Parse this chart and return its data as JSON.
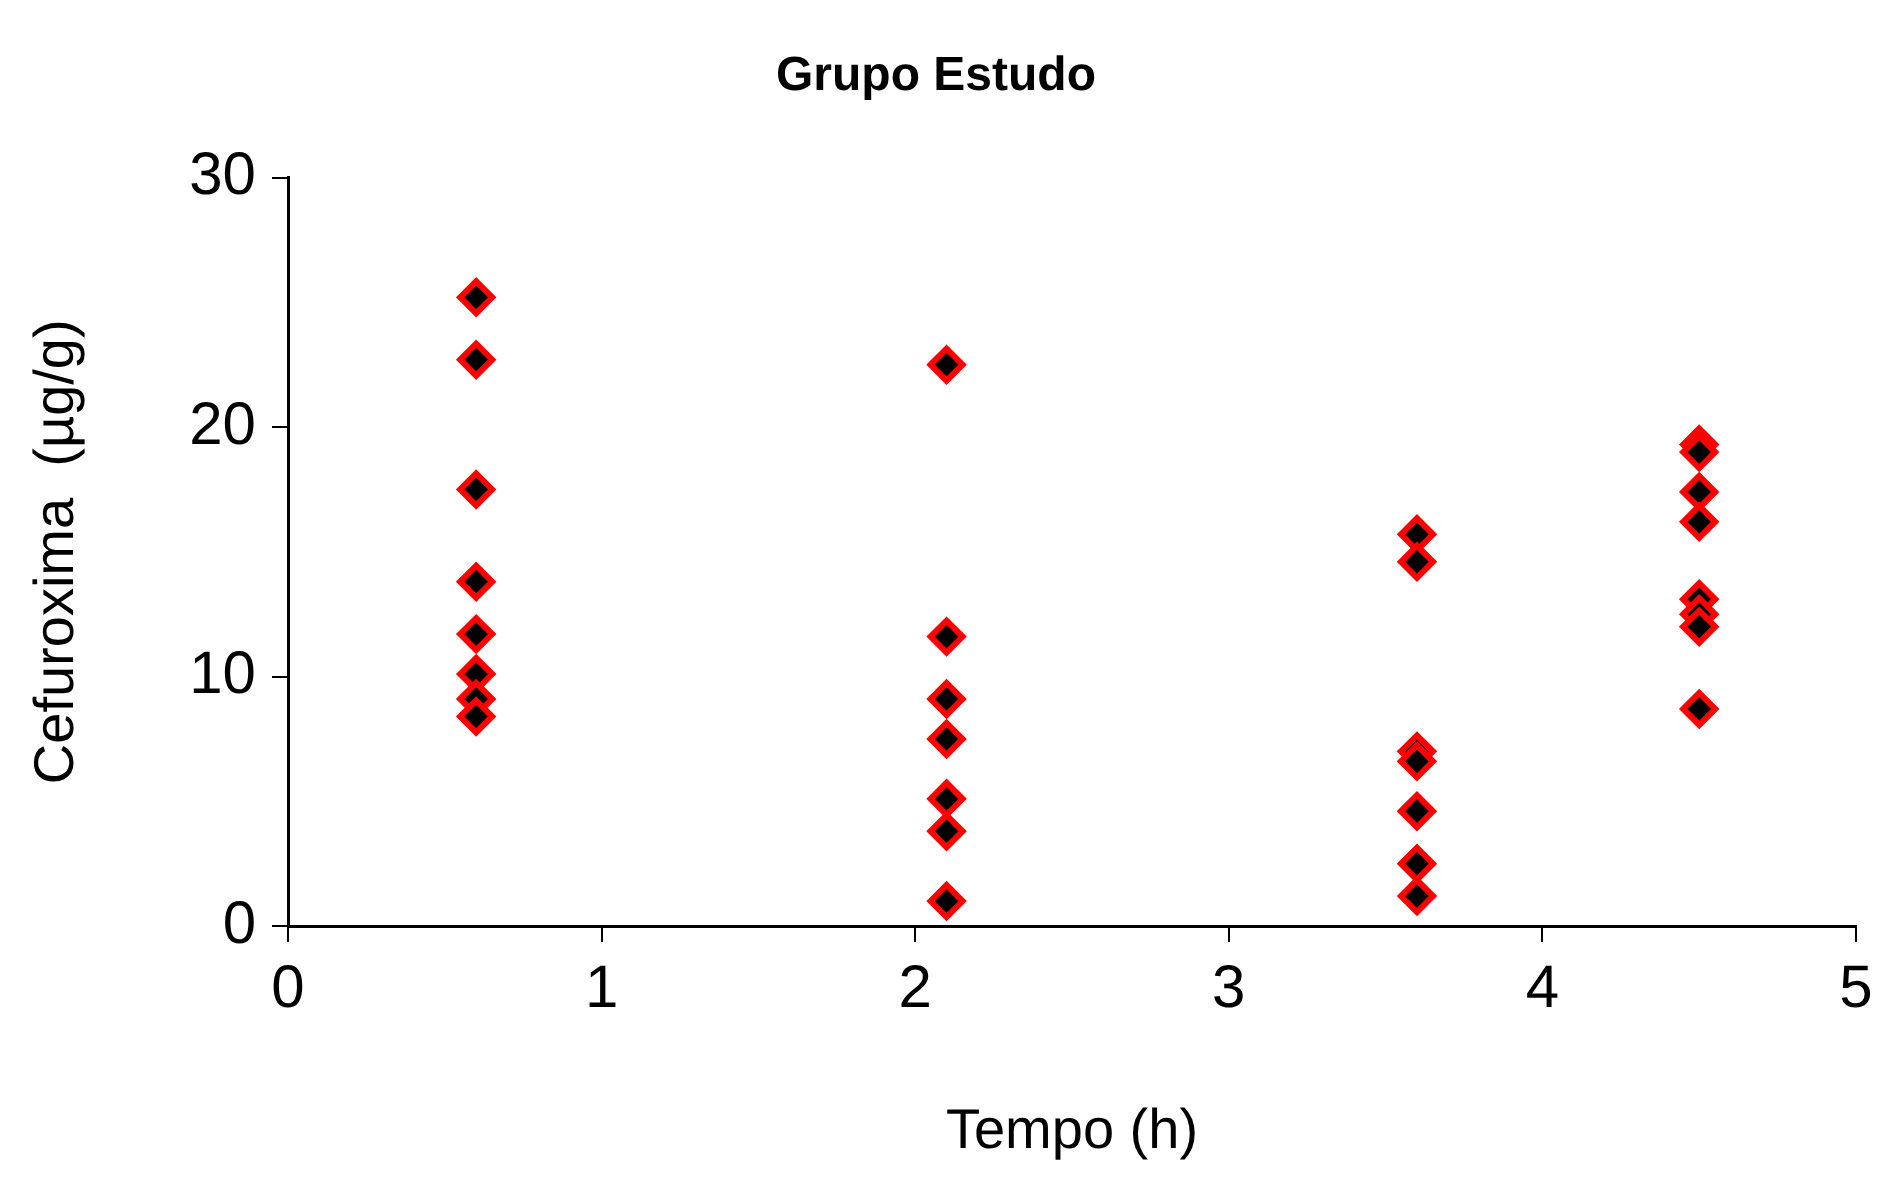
{
  "chart_data": {
    "type": "scatter",
    "title": "Grupo Estudo",
    "xlabel": "Tempo (h)",
    "ylabel": "Cefuroxima  (µg/g)",
    "x": [
      0.6,
      0.6,
      0.6,
      0.6,
      0.6,
      0.6,
      0.6,
      0.6,
      2.1,
      2.1,
      2.1,
      2.1,
      2.1,
      2.1,
      2.1,
      3.6,
      3.6,
      3.6,
      3.6,
      3.6,
      3.6,
      3.6,
      4.5,
      4.5,
      4.5,
      4.5,
      4.5,
      4.5,
      4.5,
      4.5
    ],
    "values": [
      25.2,
      22.7,
      17.5,
      13.8,
      11.7,
      10.1,
      9.1,
      8.4,
      22.5,
      11.6,
      9.1,
      7.5,
      5.1,
      3.8,
      1.0,
      15.7,
      14.6,
      7.0,
      6.6,
      4.6,
      2.5,
      1.2,
      19.3,
      19.0,
      17.4,
      16.2,
      13.1,
      12.5,
      12.0,
      8.7
    ],
    "color": "#ff0000",
    "marker": "diamond",
    "xlim": [
      0,
      5
    ],
    "xticks": [
      0,
      1,
      2,
      3,
      4,
      5
    ],
    "ylim": [
      0,
      30
    ],
    "yticks": [
      0,
      10,
      20,
      30
    ],
    "grid": false,
    "legend": false
  }
}
